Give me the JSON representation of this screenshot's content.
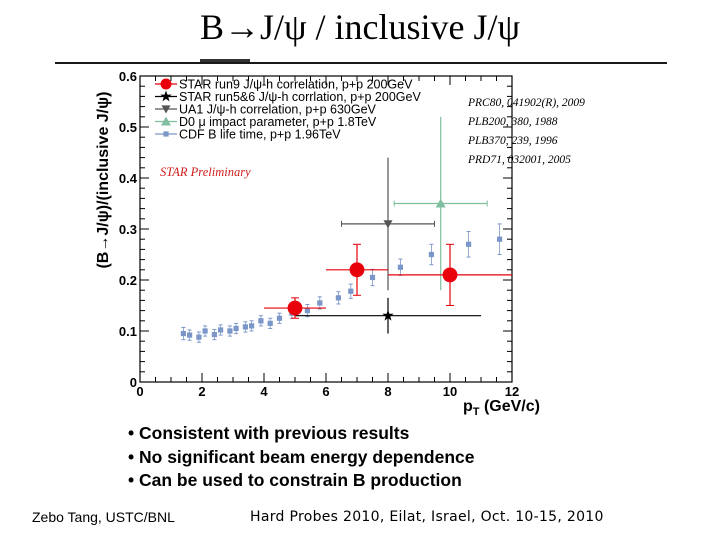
{
  "slide": {
    "title": "B→J/ψ / inclusive J/ψ",
    "bullets": [
      "Consistent with previous results",
      "No significant beam energy dependence",
      "Can be used to constrain B production"
    ],
    "footer_left": "Zebo Tang, USTC/BNL",
    "footer_right": "Hard Probes 2010, Eilat, Israel, Oct. 10-15, 2010"
  },
  "colors": {
    "star_run9": "#e8000b",
    "star_run56": "#000000",
    "ua1": "#555555",
    "d0": "#7fbf9f",
    "cdf": "#7b96c8",
    "preliminary": "#d02020"
  },
  "chart_data": {
    "type": "scatter",
    "xlabel": "p_T (GeV/c)",
    "ylabel": "(B→J/ψ)/(inclusive J/ψ)",
    "xlim": [
      0,
      12
    ],
    "ylim": [
      0,
      0.6
    ],
    "xticks": [
      "0",
      "2",
      "4",
      "6",
      "8",
      "10",
      "12"
    ],
    "yticks": [
      "0",
      "0.1",
      "0.2",
      "0.3",
      "0.4",
      "0.5",
      "0.6"
    ],
    "annotation": "STAR Preliminary",
    "references": [
      "PRC80, 041902(R), 2009",
      "PLB200, 380, 1988",
      "PLB370, 239, 1996",
      "PRD71, 032001, 2005"
    ],
    "series": [
      {
        "name": "STAR run9 J/ψ-h correlation, p+p 200GeV",
        "marker": "circle",
        "points": [
          {
            "x": 5.0,
            "y": 0.145,
            "xerr": 1.0,
            "yerr": 0.02
          },
          {
            "x": 7.0,
            "y": 0.22,
            "xerr": 1.0,
            "yerr": 0.05
          },
          {
            "x": 10.0,
            "y": 0.21,
            "xerr": 2.0,
            "yerr": 0.06
          }
        ]
      },
      {
        "name": "STAR run5&6 J/ψ-h corrlation, p+p 200GeV",
        "marker": "star",
        "points": [
          {
            "x": 8.0,
            "y": 0.13,
            "xerr": 3.0,
            "yerr": 0.035
          }
        ]
      },
      {
        "name": "UA1 J/ψ-h correlation, p+p 630GeV",
        "marker": "triangle-down",
        "points": [
          {
            "x": 8.0,
            "y": 0.31,
            "xerr": 1.5,
            "yerr": 0.13
          }
        ]
      },
      {
        "name": "D0 μ impact parameter, p+p 1.8TeV",
        "marker": "triangle-up",
        "points": [
          {
            "x": 9.7,
            "y": 0.35,
            "xerr": 1.5,
            "yerr": 0.17
          }
        ]
      },
      {
        "name": "CDF B life time, p+p 1.96TeV",
        "marker": "square",
        "points": [
          {
            "x": 1.4,
            "y": 0.095,
            "yerr": 0.012
          },
          {
            "x": 1.6,
            "y": 0.092,
            "yerr": 0.01
          },
          {
            "x": 1.9,
            "y": 0.088,
            "yerr": 0.01
          },
          {
            "x": 2.1,
            "y": 0.1,
            "yerr": 0.01
          },
          {
            "x": 2.4,
            "y": 0.093,
            "yerr": 0.01
          },
          {
            "x": 2.6,
            "y": 0.102,
            "yerr": 0.01
          },
          {
            "x": 2.9,
            "y": 0.1,
            "yerr": 0.01
          },
          {
            "x": 3.1,
            "y": 0.105,
            "yerr": 0.01
          },
          {
            "x": 3.4,
            "y": 0.108,
            "yerr": 0.01
          },
          {
            "x": 3.6,
            "y": 0.11,
            "yerr": 0.01
          },
          {
            "x": 3.9,
            "y": 0.12,
            "yerr": 0.01
          },
          {
            "x": 4.2,
            "y": 0.115,
            "yerr": 0.01
          },
          {
            "x": 4.5,
            "y": 0.125,
            "yerr": 0.01
          },
          {
            "x": 4.9,
            "y": 0.135,
            "yerr": 0.01
          },
          {
            "x": 5.4,
            "y": 0.14,
            "yerr": 0.012
          },
          {
            "x": 5.8,
            "y": 0.155,
            "yerr": 0.012
          },
          {
            "x": 6.4,
            "y": 0.165,
            "yerr": 0.012
          },
          {
            "x": 6.8,
            "y": 0.178,
            "yerr": 0.014
          },
          {
            "x": 7.5,
            "y": 0.205,
            "yerr": 0.016
          },
          {
            "x": 8.4,
            "y": 0.225,
            "yerr": 0.016
          },
          {
            "x": 9.4,
            "y": 0.25,
            "yerr": 0.02
          },
          {
            "x": 10.6,
            "y": 0.27,
            "yerr": 0.025
          },
          {
            "x": 11.6,
            "y": 0.28,
            "yerr": 0.03
          }
        ]
      }
    ]
  }
}
